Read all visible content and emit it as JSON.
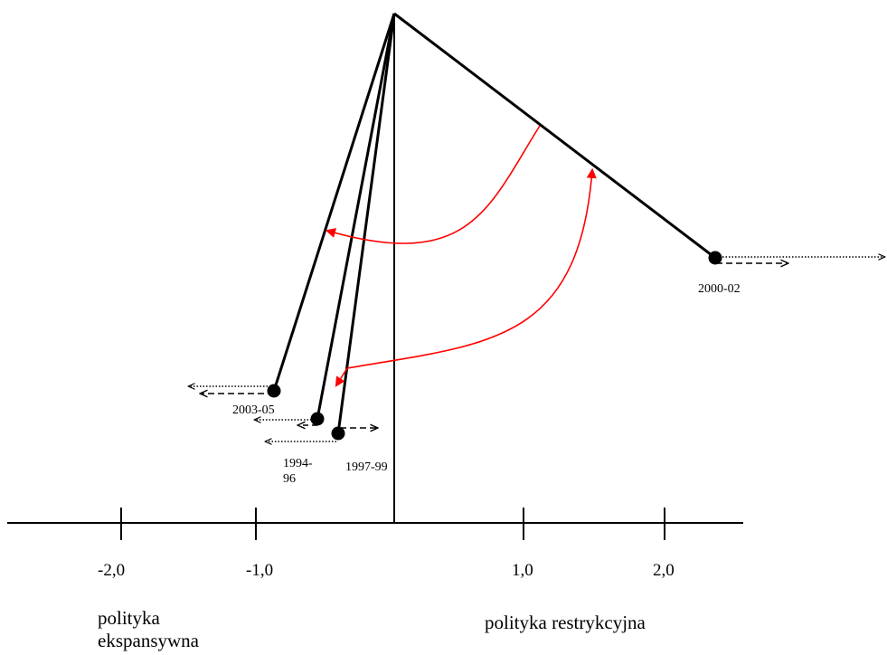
{
  "points": {
    "p_2003_05": {
      "label": "2003-05"
    },
    "p_1994_96": {
      "label_line1": "1994-",
      "label_line2": "96"
    },
    "p_1997_99": {
      "label": "1997-99"
    },
    "p_2000_02": {
      "label": "2000-02"
    }
  },
  "axis": {
    "ticks": [
      "-2,0",
      "-1,0",
      "1,0",
      "2,0"
    ]
  },
  "captions": {
    "left_line1": "polityka",
    "left_line2": "ekspansywna",
    "right": "polityka restrykcyjna"
  },
  "colors": {
    "line": "#000000",
    "arrow_red": "#ff0000"
  }
}
